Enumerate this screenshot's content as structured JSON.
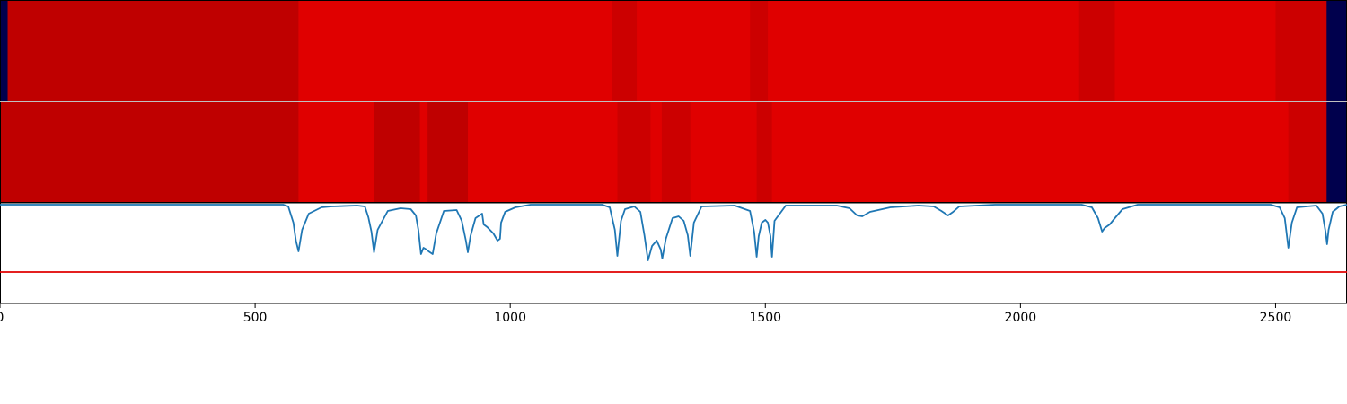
{
  "chart_data": [
    {
      "type": "heatmap",
      "panel": "top-band",
      "colormap": "seismic",
      "xlim": [
        0,
        2640
      ],
      "value_range": [
        -1,
        1
      ],
      "segments": [
        {
          "start": 0,
          "end": 15,
          "value": -1.0
        },
        {
          "start": 15,
          "end": 585,
          "value": 0.75
        },
        {
          "start": 585,
          "end": 1200,
          "value": 0.62
        },
        {
          "start": 1200,
          "end": 1248,
          "value": 0.7
        },
        {
          "start": 1248,
          "end": 1470,
          "value": 0.62
        },
        {
          "start": 1470,
          "end": 1505,
          "value": 0.7
        },
        {
          "start": 1505,
          "end": 2115,
          "value": 0.62
        },
        {
          "start": 2115,
          "end": 2185,
          "value": 0.7
        },
        {
          "start": 2185,
          "end": 2500,
          "value": 0.62
        },
        {
          "start": 2500,
          "end": 2600,
          "value": 0.7
        },
        {
          "start": 2600,
          "end": 2640,
          "value": -1.0
        }
      ]
    },
    {
      "type": "heatmap",
      "panel": "bottom-band",
      "colormap": "seismic",
      "xlim": [
        0,
        2640
      ],
      "value_range": [
        -1,
        1
      ],
      "segments": [
        {
          "start": 0,
          "end": 585,
          "value": 0.75
        },
        {
          "start": 585,
          "end": 733,
          "value": 0.62
        },
        {
          "start": 733,
          "end": 823,
          "value": 0.75
        },
        {
          "start": 823,
          "end": 838,
          "value": 0.62
        },
        {
          "start": 838,
          "end": 917,
          "value": 0.75
        },
        {
          "start": 917,
          "end": 1210,
          "value": 0.62
        },
        {
          "start": 1210,
          "end": 1275,
          "value": 0.7
        },
        {
          "start": 1275,
          "end": 1297,
          "value": 0.62
        },
        {
          "start": 1297,
          "end": 1353,
          "value": 0.7
        },
        {
          "start": 1353,
          "end": 1483,
          "value": 0.62
        },
        {
          "start": 1483,
          "end": 1513,
          "value": 0.7
        },
        {
          "start": 1513,
          "end": 2525,
          "value": 0.62
        },
        {
          "start": 2525,
          "end": 2600,
          "value": 0.7
        },
        {
          "start": 2600,
          "end": 2640,
          "value": -1.0
        }
      ]
    },
    {
      "type": "line",
      "panel": "line",
      "xlim": [
        0,
        2640
      ],
      "ylim": [
        -0.1,
        1.02
      ],
      "x_ticks": [
        0,
        500,
        1000,
        1500,
        2000,
        2500
      ],
      "threshold": {
        "value": 0.25,
        "color": "#e00000"
      },
      "series": [
        {
          "color": "#1f77b4",
          "points": [
            [
              0,
              1.0
            ],
            [
              555,
              1.0
            ],
            [
              565,
              0.98
            ],
            [
              575,
              0.8
            ],
            [
              580,
              0.6
            ],
            [
              585,
              0.48
            ],
            [
              592,
              0.72
            ],
            [
              605,
              0.9
            ],
            [
              630,
              0.97
            ],
            [
              650,
              0.98
            ],
            [
              700,
              0.99
            ],
            [
              715,
              0.98
            ],
            [
              722,
              0.86
            ],
            [
              728,
              0.7
            ],
            [
              733,
              0.47
            ],
            [
              740,
              0.72
            ],
            [
              760,
              0.93
            ],
            [
              785,
              0.96
            ],
            [
              805,
              0.95
            ],
            [
              815,
              0.88
            ],
            [
              820,
              0.72
            ],
            [
              825,
              0.45
            ],
            [
              830,
              0.52
            ],
            [
              836,
              0.5
            ],
            [
              840,
              0.48
            ],
            [
              848,
              0.45
            ],
            [
              855,
              0.68
            ],
            [
              870,
              0.93
            ],
            [
              895,
              0.94
            ],
            [
              905,
              0.82
            ],
            [
              913,
              0.6
            ],
            [
              917,
              0.47
            ],
            [
              922,
              0.65
            ],
            [
              932,
              0.85
            ],
            [
              945,
              0.9
            ],
            [
              948,
              0.78
            ],
            [
              955,
              0.75
            ],
            [
              967,
              0.68
            ],
            [
              975,
              0.6
            ],
            [
              980,
              0.62
            ],
            [
              982,
              0.8
            ],
            [
              990,
              0.92
            ],
            [
              1010,
              0.97
            ],
            [
              1040,
              1.0
            ],
            [
              1180,
              1.0
            ],
            [
              1195,
              0.97
            ],
            [
              1205,
              0.72
            ],
            [
              1210,
              0.43
            ],
            [
              1217,
              0.82
            ],
            [
              1225,
              0.95
            ],
            [
              1243,
              0.98
            ],
            [
              1255,
              0.92
            ],
            [
              1263,
              0.66
            ],
            [
              1270,
              0.38
            ],
            [
              1278,
              0.54
            ],
            [
              1287,
              0.6
            ],
            [
              1295,
              0.5
            ],
            [
              1298,
              0.4
            ],
            [
              1305,
              0.62
            ],
            [
              1318,
              0.85
            ],
            [
              1330,
              0.87
            ],
            [
              1340,
              0.82
            ],
            [
              1348,
              0.66
            ],
            [
              1353,
              0.43
            ],
            [
              1360,
              0.8
            ],
            [
              1375,
              0.98
            ],
            [
              1440,
              0.99
            ],
            [
              1470,
              0.93
            ],
            [
              1478,
              0.7
            ],
            [
              1483,
              0.42
            ],
            [
              1487,
              0.65
            ],
            [
              1493,
              0.8
            ],
            [
              1500,
              0.83
            ],
            [
              1505,
              0.8
            ],
            [
              1510,
              0.65
            ],
            [
              1513,
              0.42
            ],
            [
              1518,
              0.82
            ],
            [
              1540,
              0.99
            ],
            [
              1640,
              0.99
            ],
            [
              1665,
              0.96
            ],
            [
              1680,
              0.88
            ],
            [
              1690,
              0.87
            ],
            [
              1705,
              0.92
            ],
            [
              1745,
              0.97
            ],
            [
              1800,
              0.99
            ],
            [
              1830,
              0.98
            ],
            [
              1845,
              0.93
            ],
            [
              1858,
              0.88
            ],
            [
              1868,
              0.92
            ],
            [
              1880,
              0.98
            ],
            [
              1950,
              1.0
            ],
            [
              2120,
              1.0
            ],
            [
              2140,
              0.97
            ],
            [
              2152,
              0.85
            ],
            [
              2160,
              0.7
            ],
            [
              2165,
              0.74
            ],
            [
              2175,
              0.78
            ],
            [
              2185,
              0.85
            ],
            [
              2200,
              0.95
            ],
            [
              2230,
              1.0
            ],
            [
              2490,
              1.0
            ],
            [
              2508,
              0.97
            ],
            [
              2518,
              0.85
            ],
            [
              2525,
              0.52
            ],
            [
              2532,
              0.8
            ],
            [
              2542,
              0.97
            ],
            [
              2580,
              0.99
            ],
            [
              2592,
              0.9
            ],
            [
              2598,
              0.7
            ],
            [
              2601,
              0.56
            ],
            [
              2604,
              0.72
            ],
            [
              2612,
              0.92
            ],
            [
              2625,
              0.98
            ],
            [
              2640,
              1.0
            ]
          ]
        }
      ]
    }
  ]
}
